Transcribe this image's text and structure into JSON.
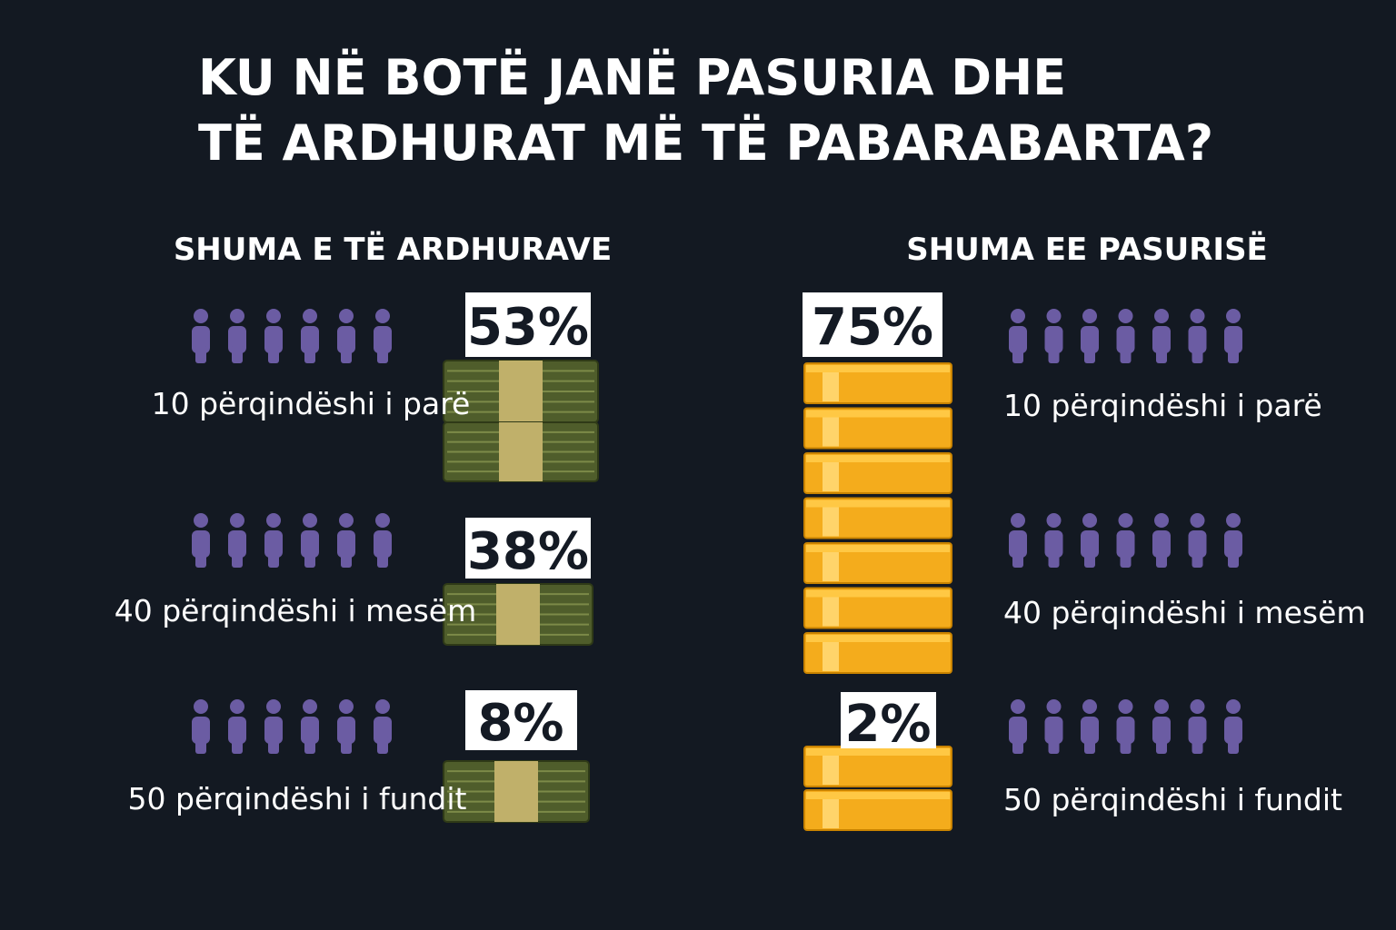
{
  "title": {
    "lines": [
      "KU NË BOTË JANË PASURIA DHE",
      "TË ARDHURAT MË TË PABARABARTA?"
    ]
  },
  "income": {
    "heading": "SHUMA E TË ARDHURAVE",
    "rows": [
      {
        "label": "10 përqindëshi i parë",
        "share": "53%"
      },
      {
        "label": "40 përqindëshi i mesëm",
        "share": "38%"
      },
      {
        "label": "50 përqindëshi i fundit",
        "share": "8%"
      }
    ]
  },
  "wealth": {
    "heading": "SHUMA EE PASURISË",
    "rows": [
      {
        "label": "10 përqindëshi i parë",
        "share": "75%"
      },
      {
        "label": "40 përqindëshi i mesëm"
      },
      {
        "label": "50 përqindëshi i fundit",
        "share": "2%"
      }
    ]
  }
}
